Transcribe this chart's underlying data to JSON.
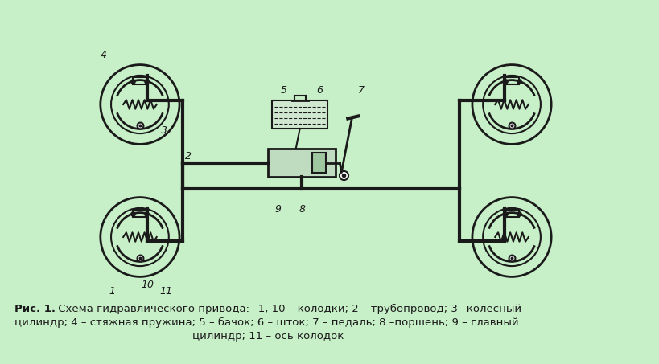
{
  "background_color": "#c8f0c8",
  "title_bold": "Рис. 1.",
  "title_normal": " Схема гидравлического привода:",
  "caption_line1": "   1, 10 – колодки; 2 – трубопровод; 3 –колесный",
  "caption_line2": "цилиндр; 4 – стяжная пружина; 5 – бачок; 6 – шток; 7 – педаль; 8 –поршень; 9 – главный",
  "caption_line3": "цилиндр; 11 – ось колодок",
  "line_color": "#1a1a1a",
  "label_color": "#1a1a1a",
  "font_size_caption": 9.5,
  "font_size_labels": 9
}
